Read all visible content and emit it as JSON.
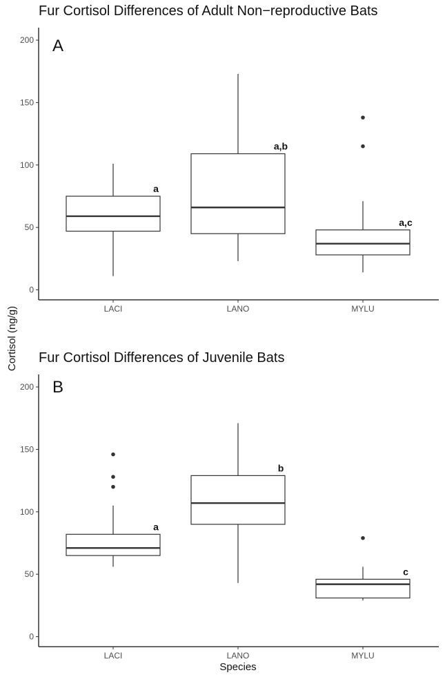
{
  "figure": {
    "ylabel": "Cortisol (ng/g)",
    "xlabel": "Species"
  },
  "chart_data": [
    {
      "type": "box",
      "panel_label": "A",
      "title": "Fur Cortisol Differences of Adult Non−reproductive Bats",
      "categories": [
        "LACI",
        "LANO",
        "MYLU"
      ],
      "ylim": [
        -8,
        210
      ],
      "yticks": [
        0,
        50,
        100,
        150,
        200
      ],
      "boxes": [
        {
          "category": "LACI",
          "whisker_low": 11,
          "q1": 47,
          "median": 59,
          "q3": 75,
          "whisker_high": 101,
          "outliers": [],
          "significance": "a"
        },
        {
          "category": "LANO",
          "whisker_low": 23,
          "q1": 45,
          "median": 66,
          "q3": 109,
          "whisker_high": 173,
          "outliers": [],
          "significance": "a,b"
        },
        {
          "category": "MYLU",
          "whisker_low": 14,
          "q1": 28,
          "median": 37,
          "q3": 48,
          "whisker_high": 71,
          "outliers": [
            115,
            138
          ],
          "significance": "a,c"
        }
      ]
    },
    {
      "type": "box",
      "panel_label": "B",
      "title": "Fur Cortisol Differences of Juvenile Bats",
      "categories": [
        "LACI",
        "LANO",
        "MYLU"
      ],
      "ylim": [
        -8,
        210
      ],
      "yticks": [
        0,
        50,
        100,
        150,
        200
      ],
      "boxes": [
        {
          "category": "LACI",
          "whisker_low": 56,
          "q1": 65,
          "median": 71,
          "q3": 82,
          "whisker_high": 105,
          "outliers": [
            120,
            128,
            146
          ],
          "significance": "a"
        },
        {
          "category": "LANO",
          "whisker_low": 43,
          "q1": 90,
          "median": 107,
          "q3": 129,
          "whisker_high": 171,
          "outliers": [],
          "significance": "b"
        },
        {
          "category": "MYLU",
          "whisker_low": 29,
          "q1": 31,
          "median": 42,
          "q3": 46,
          "whisker_high": 56,
          "outliers": [
            79
          ],
          "significance": "c"
        }
      ]
    }
  ]
}
